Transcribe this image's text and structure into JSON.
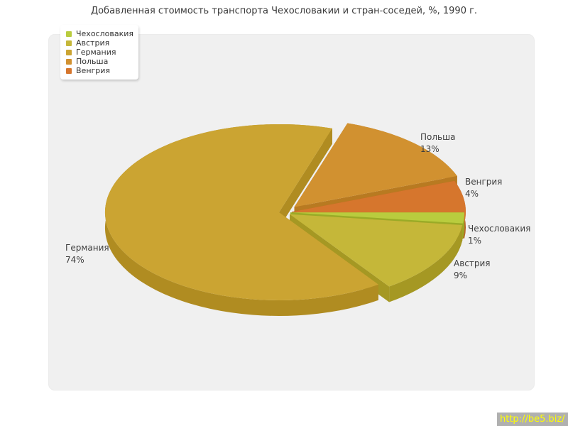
{
  "watermark": {
    "text": "http://be5.biz/",
    "bg": "#b0b0b0",
    "color": "#ffff00"
  },
  "chart_data": {
    "type": "pie",
    "style": "3d-exploded",
    "title": "Добавленная стоимость транспорта Чехословакии и стран-соседей, %, 1990 г.",
    "unit": "%",
    "legend_position": "top-left",
    "start_angle_deg": 0,
    "direction": "clockwise",
    "background": "#f0f0f0",
    "slices": [
      {
        "key": "czechoslovakia",
        "label": "Чехословакия",
        "value": 1,
        "pct": "1%",
        "color": "#b9cc3e",
        "shade": "#9aab27"
      },
      {
        "key": "austria",
        "label": "Австрия",
        "value": 9,
        "pct": "9%",
        "color": "#c5b739",
        "shade": "#a59823"
      },
      {
        "key": "germany",
        "label": "Германия",
        "value": 74,
        "pct": "74%",
        "color": "#cba432",
        "shade": "#b08c21"
      },
      {
        "key": "poland",
        "label": "Польша",
        "value": 13,
        "pct": "13%",
        "color": "#d19130",
        "shade": "#b87a21"
      },
      {
        "key": "hungary",
        "label": "Венгрия",
        "value": 4,
        "pct": "4%",
        "color": "#d6762d",
        "shade": "#b55f1b"
      }
    ]
  }
}
